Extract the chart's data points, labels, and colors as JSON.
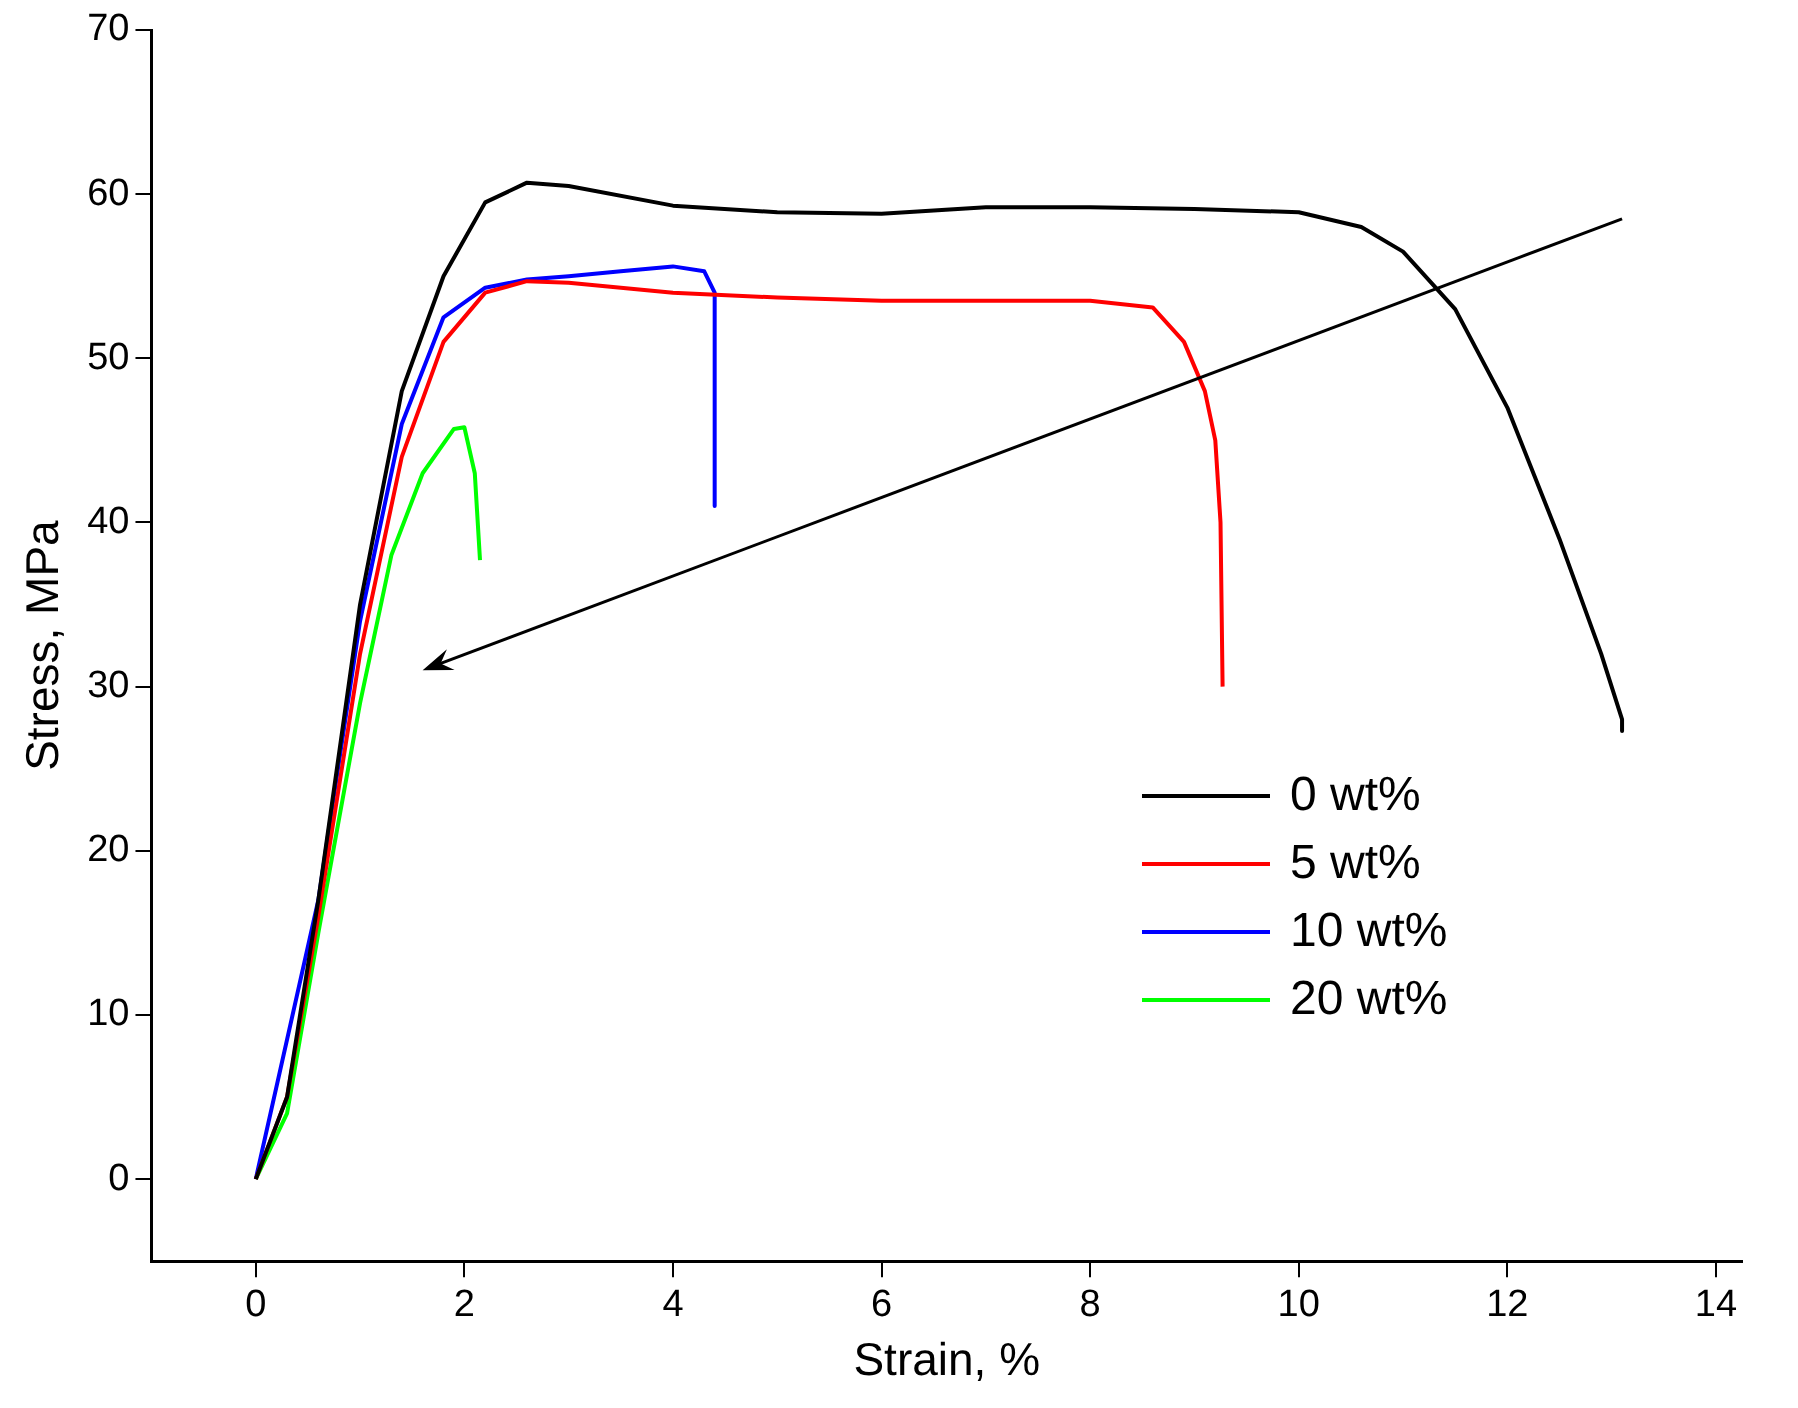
{
  "chart_data": {
    "type": "line",
    "xlabel": "Strain, %",
    "ylabel": "Stress, MPa",
    "xlim": [
      -1,
      14.25
    ],
    "xticks": [
      0,
      2,
      4,
      6,
      8,
      10,
      12,
      14
    ],
    "ylim": [
      -5,
      70
    ],
    "yticks": [
      0,
      10,
      20,
      30,
      40,
      50,
      60,
      70
    ],
    "grid": false,
    "legend": "bottom right",
    "marker": "none",
    "line_style": "solid",
    "series": [
      {
        "name": "0 wt%",
        "color": "#000000",
        "x": [
          0,
          0.3,
          0.6,
          1.0,
          1.4,
          1.8,
          2.2,
          2.6,
          3.0,
          4,
          5,
          6,
          7,
          8,
          9,
          10,
          10.6,
          11,
          11.5,
          12,
          12.5,
          12.9,
          13.1,
          13.1
        ],
        "values": [
          0,
          5,
          17,
          35,
          48,
          55,
          59.5,
          60.7,
          60.5,
          59.3,
          58.9,
          58.8,
          59.2,
          59.2,
          59.1,
          58.9,
          58,
          56.5,
          53,
          47,
          39,
          32,
          28,
          27.3
        ]
      },
      {
        "name": "5 wt%",
        "color": "#ff0000",
        "x": [
          0,
          0.3,
          0.6,
          1,
          1.4,
          1.8,
          2.2,
          2.6,
          3,
          4,
          5,
          6,
          7,
          8,
          8.6,
          8.9,
          9.1,
          9.2,
          9.25,
          9.27
        ],
        "values": [
          0,
          5,
          16,
          32,
          44,
          51,
          54,
          54.7,
          54.6,
          54,
          53.7,
          53.5,
          53.5,
          53.5,
          53.1,
          51,
          48,
          45,
          40,
          30
        ]
      },
      {
        "name": "10 wt%",
        "color": "#0000ff",
        "x": [
          0,
          0.6,
          1,
          1.4,
          1.8,
          2.2,
          2.6,
          3,
          3.5,
          4,
          4.3,
          4.4,
          4.4
        ],
        "values": [
          0,
          17,
          34,
          46,
          52.5,
          54.3,
          54.8,
          55,
          55.3,
          55.6,
          55.3,
          54,
          41
        ]
      },
      {
        "name": "20 wt%",
        "color": "#00ff00",
        "x": [
          0,
          0.3,
          0.6,
          1,
          1.3,
          1.6,
          1.9,
          2,
          2.1,
          2.15
        ],
        "values": [
          0,
          4,
          15,
          29,
          38,
          43,
          45.7,
          45.8,
          43,
          37.7
        ]
      }
    ]
  }
}
